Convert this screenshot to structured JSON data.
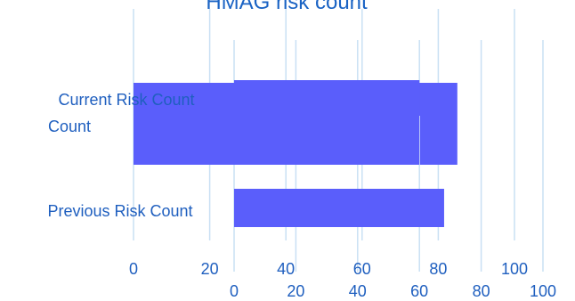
{
  "chart_data": [
    {
      "type": "bar",
      "orientation": "horizontal",
      "title": "HMAG risk count",
      "categories": [
        "Current Risk Count",
        "Previous Risk Count"
      ],
      "series": [
        {
          "values": [
            85,
            0
          ],
          "color": "#5a5efb"
        }
      ],
      "xlim": [
        0,
        100
      ],
      "xticks": [
        "0",
        "20",
        "40",
        "60",
        "80",
        "100"
      ],
      "grid": true
    },
    {
      "type": "bar",
      "orientation": "horizontal",
      "categories": [
        "Current Risk Count",
        "Previous Risk Count"
      ],
      "series": [
        {
          "values": [
            60,
            68
          ],
          "color": "#5a5efb"
        }
      ],
      "xlim": [
        0,
        100
      ],
      "xticks": [
        "0",
        "20",
        "40",
        "60",
        "80",
        "100"
      ],
      "grid": true
    }
  ],
  "labels": {
    "current_line1": "Current Risk Count",
    "current_line2": "Count",
    "previous": "Previous Risk Count"
  },
  "colors": {
    "bar": "#5a5efb",
    "grid": "#c9e0f4",
    "text": "#1f5fbf"
  }
}
